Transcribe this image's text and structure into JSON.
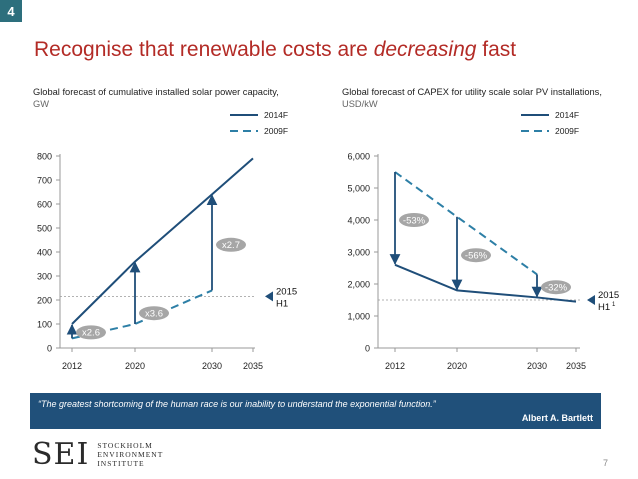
{
  "slide": {
    "badge": "4",
    "title_start": "Recognise that renewable costs are ",
    "title_emph": "decreasing",
    "title_end": " fast",
    "page_number": "7"
  },
  "quote": {
    "text": "“The greatest shortcoming of the human race is our inability to understand the exponential function.”",
    "author": "Albert A. Bartlett"
  },
  "logo": {
    "mark": "SEI",
    "line1": "STOCKHOLM",
    "line2": "ENVIRONMENT",
    "line3": "INSTITUTE"
  },
  "colors": {
    "series_2014": "#1f4e79",
    "series_2009": "#2d7fa6",
    "annotation": "#a6a6a6",
    "reference": "#999999",
    "title": "#b32b26",
    "quote_bg": "#20507a"
  },
  "chart_data": [
    {
      "type": "line",
      "title": "Global forecast of cumulative installed solar power capacity,",
      "unit": "GW",
      "x": [
        2012,
        2020,
        2030,
        2035
      ],
      "x_tick_labels": [
        "2012",
        "2020",
        "2030",
        "2035"
      ],
      "ylim": [
        0,
        800
      ],
      "y_ticks": [
        0,
        100,
        200,
        300,
        400,
        500,
        600,
        700,
        800
      ],
      "y_tick_labels": [
        "0",
        "100",
        "200",
        "300",
        "400",
        "500",
        "600",
        "700",
        "800"
      ],
      "series": [
        {
          "name": "2014F",
          "style": "solid",
          "points": [
            [
              2012,
              100
            ],
            [
              2020,
              360
            ],
            [
              2030,
              640
            ],
            [
              2035,
              790
            ]
          ]
        },
        {
          "name": "2009F",
          "style": "dashed",
          "points": [
            [
              2012,
              40
            ],
            [
              2020,
              100
            ],
            [
              2030,
              240
            ]
          ]
        }
      ],
      "multipliers": [
        {
          "x": 2012,
          "from": 40,
          "to": 100,
          "label": "x2.6",
          "label_y": 65
        },
        {
          "x": 2020,
          "from": 100,
          "to": 360,
          "label": "x3.6",
          "label_y": 145
        },
        {
          "x": 2030,
          "from": 240,
          "to": 640,
          "label": "x2.7",
          "label_y": 430
        }
      ],
      "reference": {
        "y": 215,
        "label": "2015 H1"
      },
      "legend": "top-right"
    },
    {
      "type": "line",
      "title": "Global forecast of CAPEX for utility scale solar PV installations,",
      "unit": "USD/kW",
      "x": [
        2012,
        2020,
        2030,
        2035
      ],
      "x_tick_labels": [
        "2012",
        "2020",
        "2030",
        "2035"
      ],
      "ylim": [
        0,
        6000
      ],
      "y_ticks": [
        0,
        1000,
        2000,
        3000,
        4000,
        5000,
        6000
      ],
      "y_tick_labels": [
        "0",
        "1,000",
        "2,000",
        "3,000",
        "4,000",
        "5,000",
        "6,000"
      ],
      "series": [
        {
          "name": "2014F",
          "style": "solid",
          "points": [
            [
              2012,
              2600
            ],
            [
              2020,
              1800
            ],
            [
              2030,
              1580
            ],
            [
              2035,
              1450
            ]
          ]
        },
        {
          "name": "2009F",
          "style": "dashed",
          "points": [
            [
              2012,
              5500
            ],
            [
              2020,
              4100
            ],
            [
              2030,
              2300
            ]
          ]
        }
      ],
      "multipliers": [
        {
          "x": 2012,
          "from": 5500,
          "to": 2600,
          "label": "-53%",
          "label_y": 4000
        },
        {
          "x": 2020,
          "from": 4100,
          "to": 1800,
          "label": "-56%",
          "label_y": 2900
        },
        {
          "x": 2030,
          "from": 2300,
          "to": 1580,
          "label": "-32%",
          "label_y": 1900
        }
      ],
      "reference": {
        "y": 1500,
        "label": "2015 H1",
        "label_suffix": "1"
      },
      "legend": "top-right"
    }
  ]
}
